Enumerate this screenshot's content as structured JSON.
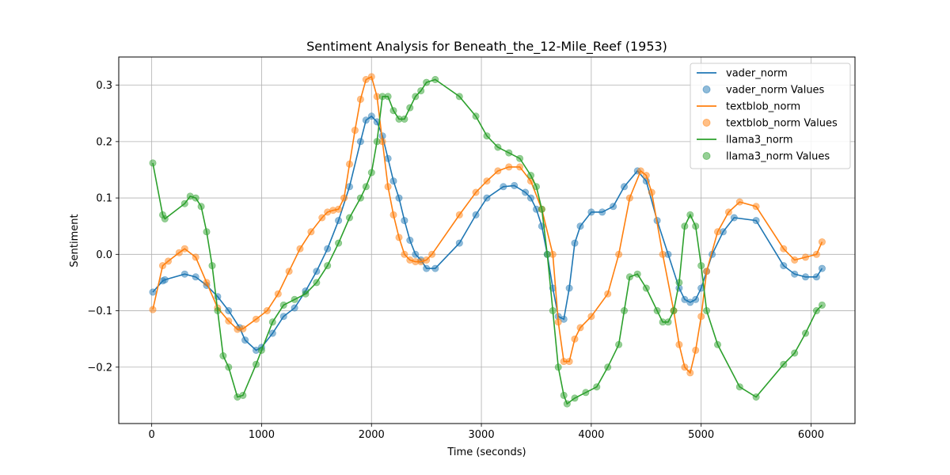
{
  "chart_data": {
    "type": "line",
    "title": "Sentiment Analysis for Beneath_the_12-Mile_Reef (1953)",
    "xlabel": "Time (seconds)",
    "ylabel": "Sentiment",
    "xlim": [
      -300,
      6400
    ],
    "ylim": [
      -0.3,
      0.35
    ],
    "xticks": [
      0,
      1000,
      2000,
      3000,
      4000,
      5000,
      6000
    ],
    "yticks": [
      -0.2,
      -0.1,
      0.0,
      0.1,
      0.2,
      0.3
    ],
    "xtick_labels": [
      "0",
      "1000",
      "2000",
      "3000",
      "4000",
      "5000",
      "6000"
    ],
    "ytick_labels": [
      "−0.2",
      "−0.1",
      "0.0",
      "0.1",
      "0.2",
      "0.3"
    ],
    "grid": true,
    "legend_position": "top-right",
    "legend": [
      "vader_norm",
      "vader_norm Values",
      "textblob_norm",
      "textblob_norm Values",
      "llama3_norm",
      "llama3_norm Values"
    ],
    "series": [
      {
        "name": "vader_norm",
        "color": "#1f77b4",
        "x": [
          10,
          100,
          120,
          300,
          400,
          500,
          600,
          700,
          800,
          850,
          950,
          1000,
          1100,
          1200,
          1300,
          1400,
          1500,
          1600,
          1700,
          1800,
          1900,
          1950,
          2000,
          2050,
          2100,
          2150,
          2200,
          2250,
          2300,
          2350,
          2400,
          2450,
          2500,
          2580,
          2800,
          2950,
          3050,
          3200,
          3300,
          3400,
          3450,
          3500,
          3550,
          3600,
          3650,
          3700,
          3750,
          3800,
          3850,
          3900,
          4000,
          4100,
          4200,
          4300,
          4420,
          4500,
          4600,
          4700,
          4800,
          4850,
          4900,
          4950,
          5000,
          5050,
          5100,
          5200,
          5300,
          5500,
          5750,
          5850,
          5950,
          6050,
          6100
        ],
        "y": [
          -0.067,
          -0.047,
          -0.045,
          -0.035,
          -0.04,
          -0.055,
          -0.075,
          -0.1,
          -0.13,
          -0.152,
          -0.17,
          -0.165,
          -0.14,
          -0.11,
          -0.095,
          -0.065,
          -0.03,
          0.01,
          0.06,
          0.12,
          0.2,
          0.238,
          0.245,
          0.235,
          0.21,
          0.17,
          0.13,
          0.1,
          0.06,
          0.025,
          0.0,
          -0.01,
          -0.025,
          -0.025,
          0.02,
          0.07,
          0.1,
          0.12,
          0.122,
          0.11,
          0.1,
          0.08,
          0.05,
          0.0,
          -0.06,
          -0.11,
          -0.115,
          -0.06,
          0.02,
          0.05,
          0.075,
          0.075,
          0.085,
          0.12,
          0.148,
          0.13,
          0.06,
          0.0,
          -0.06,
          -0.08,
          -0.085,
          -0.08,
          -0.06,
          -0.03,
          0.0,
          0.04,
          0.065,
          0.06,
          -0.02,
          -0.035,
          -0.04,
          -0.04,
          -0.025
        ]
      },
      {
        "name": "textblob_norm",
        "color": "#ff7f0e",
        "x": [
          10,
          100,
          150,
          250,
          300,
          400,
          500,
          600,
          700,
          780,
          830,
          950,
          1050,
          1150,
          1250,
          1350,
          1450,
          1550,
          1600,
          1650,
          1700,
          1750,
          1800,
          1850,
          1900,
          1950,
          2000,
          2050,
          2100,
          2150,
          2200,
          2250,
          2300,
          2350,
          2400,
          2450,
          2500,
          2550,
          2800,
          2950,
          3050,
          3150,
          3250,
          3350,
          3450,
          3550,
          3650,
          3700,
          3750,
          3800,
          3850,
          3900,
          4000,
          4150,
          4250,
          4350,
          4450,
          4500,
          4550,
          4650,
          4750,
          4800,
          4850,
          4900,
          4950,
          5000,
          5050,
          5150,
          5250,
          5350,
          5500,
          5750,
          5850,
          5950,
          6050,
          6100
        ],
        "y": [
          -0.098,
          -0.02,
          -0.012,
          0.003,
          0.01,
          -0.005,
          -0.05,
          -0.095,
          -0.118,
          -0.133,
          -0.132,
          -0.115,
          -0.1,
          -0.07,
          -0.03,
          0.01,
          0.04,
          0.065,
          0.075,
          0.078,
          0.08,
          0.1,
          0.16,
          0.22,
          0.275,
          0.31,
          0.315,
          0.28,
          0.2,
          0.12,
          0.07,
          0.03,
          0.0,
          -0.01,
          -0.013,
          -0.013,
          -0.01,
          0.0,
          0.07,
          0.11,
          0.13,
          0.148,
          0.155,
          0.155,
          0.13,
          0.08,
          0.0,
          -0.12,
          -0.19,
          -0.19,
          -0.15,
          -0.13,
          -0.11,
          -0.07,
          0.0,
          0.1,
          0.148,
          0.14,
          0.11,
          0.0,
          -0.1,
          -0.16,
          -0.2,
          -0.21,
          -0.17,
          -0.11,
          -0.03,
          0.04,
          0.075,
          0.093,
          0.085,
          0.01,
          -0.01,
          -0.005,
          0.0,
          0.022
        ]
      },
      {
        "name": "llama3_norm",
        "color": "#2ca02c",
        "x": [
          10,
          100,
          120,
          300,
          350,
          400,
          450,
          500,
          550,
          600,
          650,
          700,
          780,
          830,
          950,
          1000,
          1100,
          1200,
          1300,
          1400,
          1500,
          1600,
          1700,
          1800,
          1900,
          1950,
          2000,
          2050,
          2100,
          2150,
          2200,
          2250,
          2300,
          2350,
          2400,
          2450,
          2500,
          2580,
          2800,
          2950,
          3050,
          3150,
          3250,
          3350,
          3450,
          3500,
          3550,
          3600,
          3650,
          3700,
          3750,
          3780,
          3850,
          3950,
          4050,
          4150,
          4250,
          4300,
          4350,
          4420,
          4500,
          4600,
          4650,
          4700,
          4750,
          4800,
          4850,
          4900,
          4950,
          5000,
          5050,
          5150,
          5350,
          5500,
          5750,
          5850,
          5950,
          6050,
          6100
        ],
        "y": [
          0.162,
          0.07,
          0.063,
          0.09,
          0.103,
          0.1,
          0.085,
          0.04,
          -0.02,
          -0.1,
          -0.18,
          -0.2,
          -0.253,
          -0.25,
          -0.195,
          -0.17,
          -0.12,
          -0.09,
          -0.08,
          -0.07,
          -0.05,
          -0.02,
          0.02,
          0.065,
          0.1,
          0.12,
          0.145,
          0.2,
          0.28,
          0.28,
          0.255,
          0.24,
          0.24,
          0.26,
          0.28,
          0.29,
          0.305,
          0.31,
          0.28,
          0.245,
          0.21,
          0.19,
          0.18,
          0.17,
          0.14,
          0.12,
          0.08,
          0.0,
          -0.1,
          -0.2,
          -0.25,
          -0.265,
          -0.255,
          -0.245,
          -0.235,
          -0.2,
          -0.16,
          -0.1,
          -0.04,
          -0.035,
          -0.06,
          -0.1,
          -0.12,
          -0.12,
          -0.1,
          -0.05,
          0.05,
          0.07,
          0.05,
          -0.02,
          -0.1,
          -0.16,
          -0.235,
          -0.253,
          -0.195,
          -0.175,
          -0.14,
          -0.1,
          -0.09
        ]
      }
    ]
  }
}
